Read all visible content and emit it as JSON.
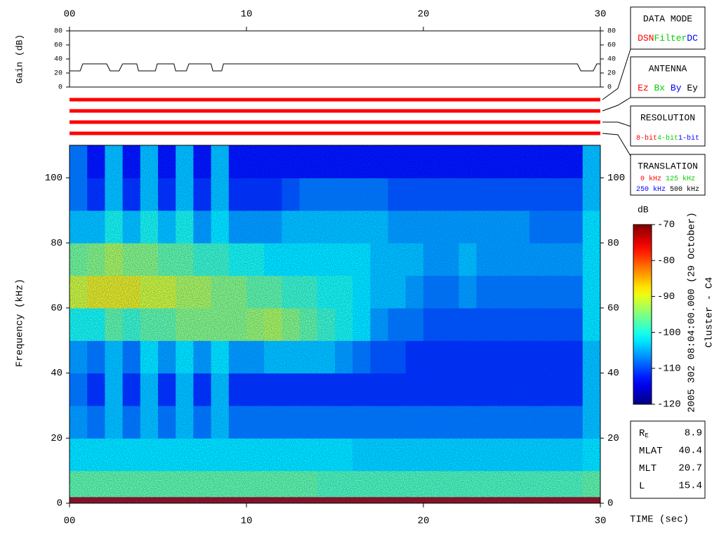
{
  "chart_data": [
    {
      "type": "line",
      "ylabel": "Gain (dB)",
      "color": "#000000",
      "x": [
        0,
        0.6,
        0.75,
        2.1,
        2.3,
        2.8,
        3.0,
        3.8,
        3.9,
        4.85,
        4.96,
        5.9,
        6.0,
        6.6,
        6.75,
        8.0,
        8.1,
        8.6,
        8.7,
        28.7,
        28.9,
        29.6,
        29.8,
        30
      ],
      "values": [
        23,
        23,
        33,
        33,
        23,
        23,
        33,
        33,
        23,
        23,
        33,
        33,
        23,
        23,
        33,
        33,
        23,
        23,
        33,
        33,
        23,
        23,
        33,
        33
      ],
      "xlim": [
        0,
        30
      ],
      "ylim": [
        0,
        80
      ],
      "xticks": [
        {
          "value": 0,
          "label": "00"
        },
        10,
        20,
        30
      ],
      "yticks": [
        0,
        20,
        40,
        60,
        80
      ]
    },
    {
      "type": "heatmap",
      "ylabel": "Frequency (kHz)",
      "xlabel": "TIME (sec)",
      "x_bins": [
        0,
        1,
        2,
        3,
        4,
        5,
        6,
        7,
        8,
        9,
        10,
        11,
        12,
        13,
        14,
        15,
        16,
        17,
        18,
        19,
        20,
        21,
        22,
        23,
        24,
        25,
        26,
        27,
        28,
        29,
        30
      ],
      "y_bins": [
        0,
        2,
        10,
        20,
        30,
        40,
        50,
        60,
        70,
        80,
        90,
        100,
        110
      ],
      "z": [
        [
          -72,
          -96,
          -102,
          -106,
          -108,
          -106,
          -100,
          -90,
          -95,
          -104,
          -108,
          -108
        ],
        [
          -72,
          -96,
          -102,
          -108,
          -112,
          -108,
          -100,
          -88,
          -94,
          -104,
          -112,
          -114
        ],
        [
          -72,
          -96,
          -102,
          -104,
          -104,
          -104,
          -96,
          -88,
          -92,
          -100,
          -104,
          -104
        ],
        [
          -72,
          -96,
          -102,
          -108,
          -112,
          -108,
          -98,
          -88,
          -94,
          -104,
          -112,
          -114
        ],
        [
          -72,
          -96,
          -102,
          -104,
          -104,
          -102,
          -96,
          -90,
          -94,
          -100,
          -104,
          -104
        ],
        [
          -72,
          -96,
          -102,
          -108,
          -112,
          -106,
          -96,
          -90,
          -96,
          -104,
          -112,
          -114
        ],
        [
          -72,
          -96,
          -102,
          -104,
          -104,
          -102,
          -94,
          -92,
          -96,
          -100,
          -104,
          -104
        ],
        [
          -72,
          -96,
          -102,
          -108,
          -112,
          -106,
          -94,
          -92,
          -98,
          -106,
          -112,
          -114
        ],
        [
          -72,
          -96,
          -102,
          -104,
          -104,
          -102,
          -94,
          -94,
          -98,
          -102,
          -104,
          -104
        ],
        [
          -72,
          -96,
          -102,
          -108,
          -112,
          -106,
          -94,
          -94,
          -100,
          -106,
          -112,
          -114
        ],
        [
          -72,
          -96,
          -102,
          -108,
          -112,
          -106,
          -93,
          -96,
          -100,
          -106,
          -112,
          -114
        ],
        [
          -72,
          -96,
          -102,
          -108,
          -112,
          -104,
          -92,
          -96,
          -102,
          -106,
          -112,
          -114
        ],
        [
          -72,
          -96,
          -102,
          -108,
          -112,
          -104,
          -94,
          -98,
          -102,
          -104,
          -110,
          -114
        ],
        [
          -72,
          -96,
          -102,
          -108,
          -112,
          -104,
          -96,
          -98,
          -102,
          -104,
          -108,
          -114
        ],
        [
          -72,
          -97,
          -102,
          -108,
          -112,
          -104,
          -98,
          -100,
          -102,
          -104,
          -108,
          -114
        ],
        [
          -72,
          -97,
          -102,
          -108,
          -112,
          -106,
          -100,
          -100,
          -102,
          -104,
          -108,
          -114
        ],
        [
          -72,
          -97,
          -103,
          -108,
          -112,
          -108,
          -102,
          -102,
          -102,
          -104,
          -108,
          -114
        ],
        [
          -72,
          -97,
          -103,
          -108,
          -112,
          -110,
          -106,
          -104,
          -104,
          -104,
          -108,
          -114
        ],
        [
          -72,
          -97,
          -103,
          -108,
          -112,
          -110,
          -108,
          -104,
          -104,
          -106,
          -110,
          -114
        ],
        [
          -72,
          -97,
          -103,
          -108,
          -112,
          -112,
          -108,
          -106,
          -104,
          -106,
          -110,
          -114
        ],
        [
          -72,
          -97,
          -103,
          -108,
          -112,
          -112,
          -110,
          -108,
          -106,
          -106,
          -110,
          -114
        ],
        [
          -72,
          -97,
          -103,
          -108,
          -112,
          -112,
          -110,
          -108,
          -106,
          -106,
          -110,
          -114
        ],
        [
          -72,
          -97,
          -103,
          -108,
          -112,
          -112,
          -110,
          -106,
          -104,
          -106,
          -110,
          -114
        ],
        [
          -72,
          -97,
          -103,
          -108,
          -112,
          -112,
          -110,
          -108,
          -106,
          -106,
          -110,
          -114
        ],
        [
          -72,
          -97,
          -103,
          -108,
          -112,
          -112,
          -110,
          -108,
          -106,
          -106,
          -110,
          -114
        ],
        [
          -72,
          -97,
          -103,
          -108,
          -112,
          -112,
          -110,
          -108,
          -106,
          -106,
          -110,
          -114
        ],
        [
          -72,
          -97,
          -103,
          -108,
          -112,
          -112,
          -110,
          -108,
          -106,
          -108,
          -110,
          -114
        ],
        [
          -72,
          -97,
          -103,
          -108,
          -112,
          -112,
          -110,
          -108,
          -106,
          -108,
          -110,
          -114
        ],
        [
          -72,
          -97,
          -103,
          -108,
          -112,
          -112,
          -110,
          -108,
          -106,
          -108,
          -110,
          -114
        ],
        [
          -72,
          -96,
          -102,
          -104,
          -104,
          -104,
          -102,
          -102,
          -102,
          -102,
          -104,
          -104
        ]
      ],
      "xlim": [
        0,
        30
      ],
      "ylim": [
        0,
        110
      ],
      "xticks": [
        {
          "value": 0,
          "label": "00"
        },
        10,
        20,
        30
      ],
      "yticks": [
        0,
        20,
        40,
        60,
        80,
        100
      ],
      "colorbar": {
        "label": "dB",
        "lim": [
          -120,
          -70
        ],
        "ticks": [
          -120,
          -110,
          -100,
          -90,
          -80,
          -70
        ]
      }
    }
  ],
  "side_title": "2005 302 08:04:00.000 (29 October)",
  "spacecraft": "Cluster - C4",
  "panels": [
    {
      "title": "DATA MODE",
      "items": [
        {
          "text": "DSN",
          "color": "#ff0000"
        },
        {
          "text": "Filter",
          "color": "#00d000"
        },
        {
          "text": "DC",
          "color": "#0000ff"
        }
      ]
    },
    {
      "title": "ANTENNA",
      "items": [
        {
          "text": "Ez",
          "color": "#ff0000"
        },
        {
          "text": "Bx",
          "color": "#00d000"
        },
        {
          "text": "By",
          "color": "#0000ff"
        },
        {
          "text": "Ey",
          "color": "#000000"
        }
      ]
    },
    {
      "title": "RESOLUTION",
      "items": [
        {
          "text": "8-bit",
          "color": "#ff0000"
        },
        {
          "text": "4-bit",
          "color": "#00d000"
        },
        {
          "text": "1-bit",
          "color": "#0000ff"
        }
      ]
    },
    {
      "title": "TRANSLATION",
      "items": [
        {
          "text": "0 kHz",
          "color": "#ff0000"
        },
        {
          "text": "125 kHz",
          "color": "#00d000"
        },
        {
          "text": "250 kHz",
          "color": "#0000ff"
        },
        {
          "text": "500 kHz",
          "color": "#000000"
        }
      ]
    }
  ],
  "position": [
    {
      "label": "R",
      "sub": "E",
      "value": 8.9
    },
    {
      "label": "MLAT",
      "value": 40.4
    },
    {
      "label": "MLT",
      "value": 20.7
    },
    {
      "label": "L",
      "value": 15.4
    }
  ]
}
